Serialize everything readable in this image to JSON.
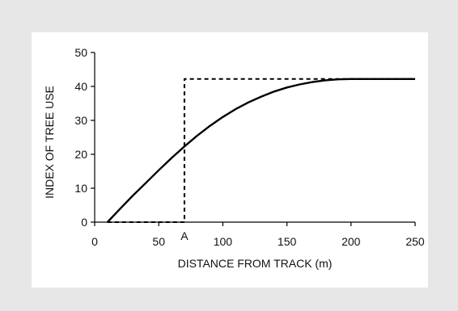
{
  "chart_data": {
    "type": "line",
    "title": "",
    "xlabel": "DISTANCE FROM TRACK (m)",
    "ylabel": "INDEX OF TREE USE",
    "xlim": [
      0,
      250
    ],
    "ylim": [
      0,
      50
    ],
    "x_ticks": [
      "0",
      "50",
      "100",
      "150",
      "200",
      "250"
    ],
    "y_ticks": [
      "0",
      "10",
      "20",
      "30",
      "40",
      "50"
    ],
    "x_tick_values": [
      0,
      50,
      100,
      150,
      200,
      250
    ],
    "y_tick_values": [
      0,
      10,
      20,
      30,
      40,
      50
    ],
    "grid": false,
    "series": [
      {
        "style": "solid",
        "x": [
          10,
          20,
          30,
          40,
          50,
          60,
          70,
          80,
          90,
          100,
          110,
          120,
          130,
          140,
          150,
          160,
          170,
          180,
          190,
          200,
          210,
          220,
          230,
          240,
          250
        ],
        "y": [
          0.0,
          4.0,
          7.9,
          11.6,
          15.3,
          18.9,
          22.3,
          25.5,
          28.4,
          31.0,
          33.3,
          35.3,
          37.0,
          38.5,
          39.7,
          40.6,
          41.3,
          41.8,
          42.1,
          42.2,
          42.2,
          42.2,
          42.2,
          42.2,
          42.2
        ]
      },
      {
        "style": "dashed",
        "x": [
          10,
          70,
          70,
          250
        ],
        "y": [
          0,
          0,
          42.2,
          42.2
        ]
      }
    ],
    "annotations": [
      {
        "text": "A",
        "x": 70,
        "y": 0
      }
    ],
    "colors": {
      "line": "#000000",
      "axis": "#000000",
      "panel": "#ffffff",
      "background": "#e6e6e6"
    }
  }
}
